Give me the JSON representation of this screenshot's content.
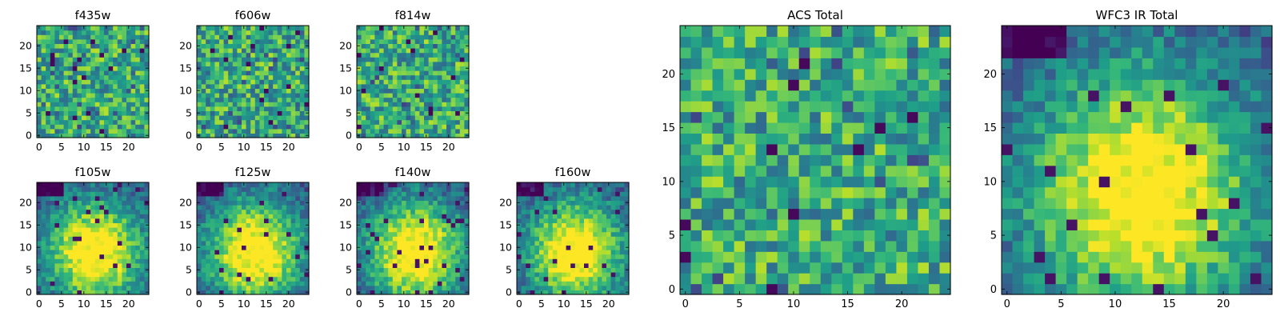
{
  "chart_data": [
    {
      "type": "heatmap",
      "title": "f435w",
      "x_ticks": [
        "0",
        "5",
        "10",
        "15",
        "20"
      ],
      "y_ticks": [
        "0",
        "5",
        "10",
        "15",
        "20"
      ],
      "xlim": [
        -0.5,
        24.5
      ],
      "ylim": [
        -0.5,
        24.5
      ],
      "grid_size": 25,
      "cmap": "viridis",
      "pattern": "noise",
      "seed": 11,
      "scale": "small"
    },
    {
      "type": "heatmap",
      "title": "f606w",
      "x_ticks": [
        "0",
        "5",
        "10",
        "15",
        "20"
      ],
      "y_ticks": [
        "0",
        "5",
        "10",
        "15",
        "20"
      ],
      "xlim": [
        -0.5,
        24.5
      ],
      "ylim": [
        -0.5,
        24.5
      ],
      "grid_size": 25,
      "cmap": "viridis",
      "pattern": "noise",
      "seed": 23,
      "scale": "small"
    },
    {
      "type": "heatmap",
      "title": "f814w",
      "x_ticks": [
        "0",
        "5",
        "10",
        "15",
        "20"
      ],
      "y_ticks": [
        "0",
        "5",
        "10",
        "15",
        "20"
      ],
      "xlim": [
        -0.5,
        24.5
      ],
      "ylim": [
        -0.5,
        24.5
      ],
      "grid_size": 25,
      "cmap": "viridis",
      "pattern": "noise",
      "seed": 37,
      "scale": "small"
    },
    {
      "type": "heatmap",
      "title": "f105w",
      "x_ticks": [
        "0",
        "5",
        "10",
        "15",
        "20"
      ],
      "y_ticks": [
        "0",
        "5",
        "10",
        "15",
        "20"
      ],
      "xlim": [
        -0.5,
        24.5
      ],
      "ylim": [
        -0.5,
        24.5
      ],
      "grid_size": 25,
      "cmap": "viridis",
      "pattern": "blob",
      "seed": 41,
      "scale": "small"
    },
    {
      "type": "heatmap",
      "title": "f125w",
      "x_ticks": [
        "0",
        "5",
        "10",
        "15",
        "20"
      ],
      "y_ticks": [
        "0",
        "5",
        "10",
        "15",
        "20"
      ],
      "xlim": [
        -0.5,
        24.5
      ],
      "ylim": [
        -0.5,
        24.5
      ],
      "grid_size": 25,
      "cmap": "viridis",
      "pattern": "blob",
      "seed": 53,
      "scale": "small"
    },
    {
      "type": "heatmap",
      "title": "f140w",
      "x_ticks": [
        "0",
        "5",
        "10",
        "15",
        "20"
      ],
      "y_ticks": [
        "0",
        "5",
        "10",
        "15",
        "20"
      ],
      "xlim": [
        -0.5,
        24.5
      ],
      "ylim": [
        -0.5,
        24.5
      ],
      "grid_size": 25,
      "cmap": "viridis",
      "pattern": "blob",
      "seed": 67,
      "scale": "small"
    },
    {
      "type": "heatmap",
      "title": "f160w",
      "x_ticks": [
        "0",
        "5",
        "10",
        "15",
        "20"
      ],
      "y_ticks": [
        "0",
        "5",
        "10",
        "15",
        "20"
      ],
      "xlim": [
        -0.5,
        24.5
      ],
      "ylim": [
        -0.5,
        24.5
      ],
      "grid_size": 25,
      "cmap": "viridis",
      "pattern": "blob",
      "seed": 79,
      "scale": "small"
    },
    {
      "type": "heatmap",
      "title": "ACS Total",
      "x_ticks": [
        "0",
        "5",
        "10",
        "15",
        "20"
      ],
      "y_ticks": [
        "0",
        "5",
        "10",
        "15",
        "20"
      ],
      "xlim": [
        -0.5,
        24.5
      ],
      "ylim": [
        -0.5,
        24.5
      ],
      "grid_size": 25,
      "cmap": "viridis",
      "pattern": "noise",
      "seed": 97,
      "scale": "large"
    },
    {
      "type": "heatmap",
      "title": "WFC3 IR Total",
      "x_ticks": [
        "0",
        "5",
        "10",
        "15",
        "20"
      ],
      "y_ticks": [
        "0",
        "5",
        "10",
        "15",
        "20"
      ],
      "xlim": [
        -0.5,
        24.5
      ],
      "ylim": [
        -0.5,
        24.5
      ],
      "grid_size": 25,
      "cmap": "viridis",
      "pattern": "blob",
      "seed": 131,
      "scale": "large"
    }
  ]
}
